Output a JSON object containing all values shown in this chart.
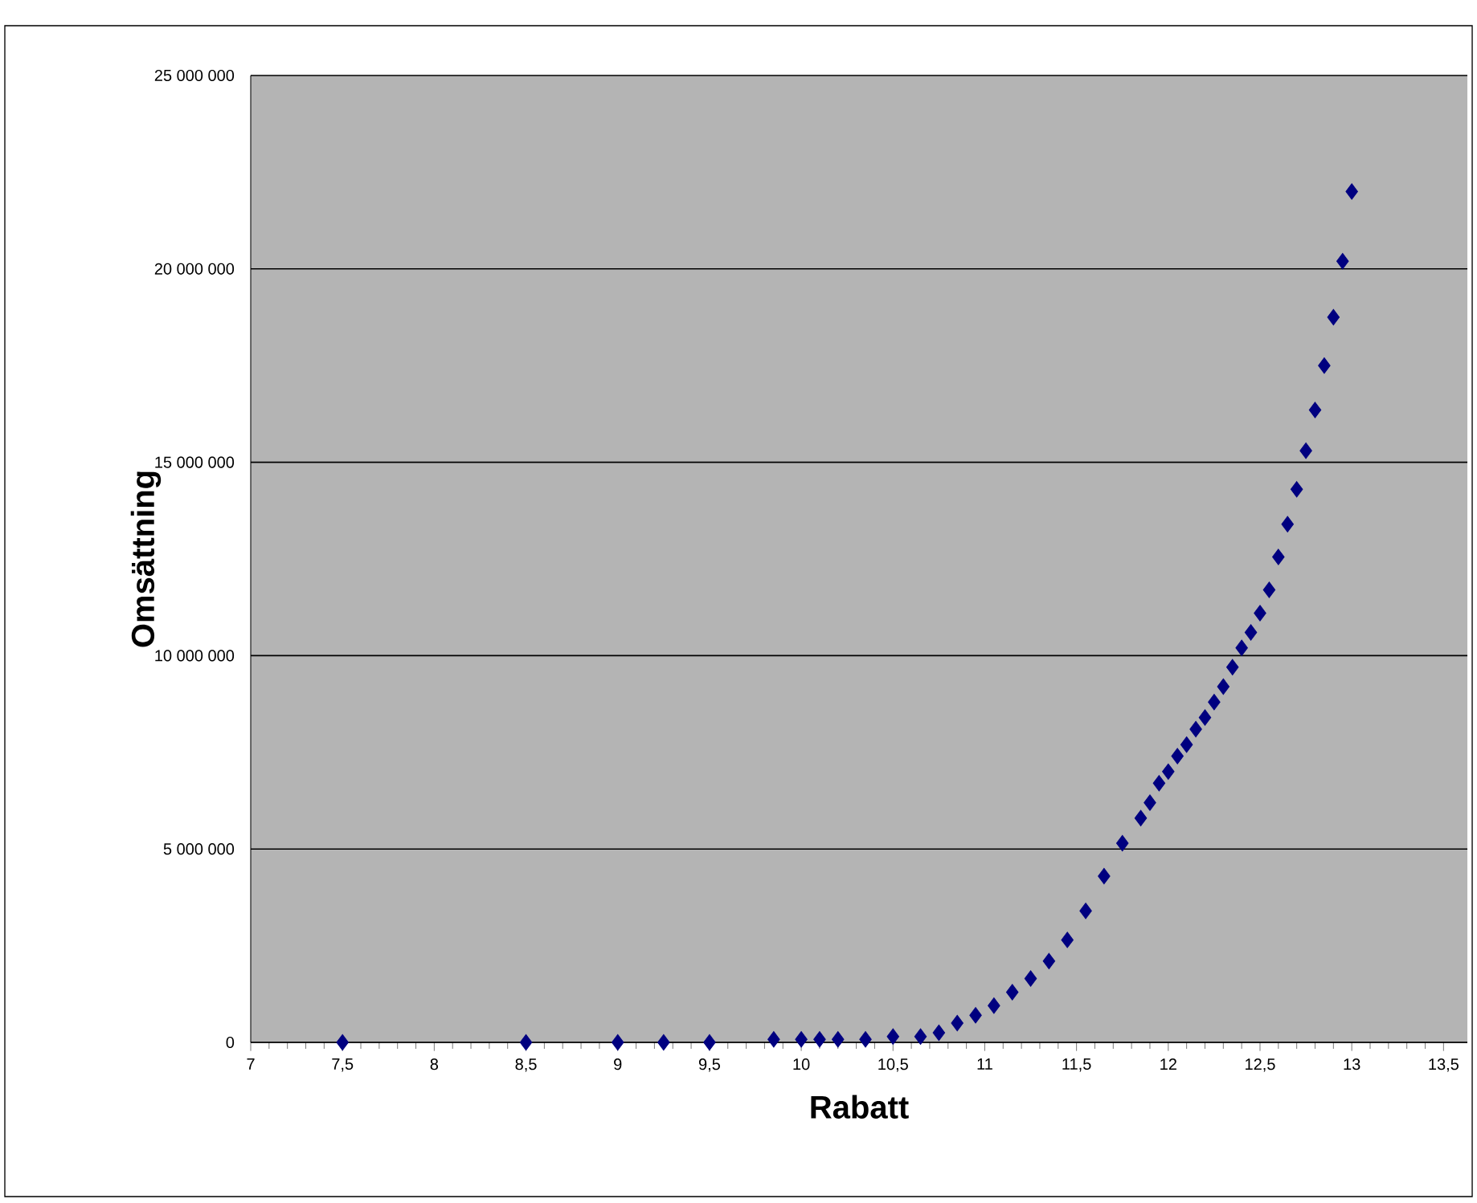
{
  "chart_data": {
    "type": "scatter",
    "xlabel": "Rabatt",
    "ylabel": "Omsättning",
    "x": [
      7.5,
      8.5,
      9,
      9.25,
      9.5,
      9.85,
      10,
      10.1,
      10.2,
      10.35,
      10.5,
      10.65,
      10.75,
      10.85,
      10.95,
      11.05,
      11.15,
      11.25,
      11.35,
      11.45,
      11.55,
      11.65,
      11.75,
      11.85,
      11.9,
      11.95,
      12,
      12.05,
      12.1,
      12.15,
      12.2,
      12.25,
      12.3,
      12.35,
      12.4,
      12.45,
      12.5,
      12.55,
      12.6,
      12.65,
      12.7,
      12.75,
      12.8,
      12.85,
      12.9,
      12.95,
      13
    ],
    "series": [
      {
        "color": "#000080",
        "values": [
          0,
          0,
          0,
          0,
          0,
          80000,
          80000,
          80000,
          80000,
          80000,
          150000,
          150000,
          250000,
          500000,
          700000,
          950000,
          1300000,
          1650000,
          2100000,
          2650000,
          3400000,
          4300000,
          5150000,
          5800000,
          6200000,
          6700000,
          7000000,
          7400000,
          7700000,
          8100000,
          8400000,
          8800000,
          9200000,
          9700000,
          10200000,
          10600000,
          11100000,
          11700000,
          12550000,
          13400000,
          14300000,
          15300000,
          16350000,
          17500000,
          18750000,
          20200000,
          22000000
        ]
      }
    ],
    "xlim": [
      7,
      13.63
    ],
    "xticks": [
      7,
      {
        "value": 7.5,
        "label": "7,5"
      },
      8,
      {
        "value": 8.5,
        "label": "8,5"
      },
      9,
      {
        "value": 9.5,
        "label": "9,5"
      },
      10,
      {
        "value": 10.5,
        "label": "10,5"
      },
      11,
      {
        "value": 11.5,
        "label": "11,5"
      },
      12,
      {
        "value": 12.5,
        "label": "12,5"
      },
      13,
      {
        "value": 13.5,
        "label": "13,5"
      }
    ],
    "ylim": [
      0,
      25000000
    ],
    "yticks": [
      0,
      {
        "value": 5000000,
        "label": "5 000 000"
      },
      {
        "value": 10000000,
        "label": "10 000 000"
      },
      {
        "value": 15000000,
        "label": "15 000 000"
      },
      {
        "value": 20000000,
        "label": "20 000 000"
      },
      {
        "value": 25000000,
        "label": "25 000 000"
      }
    ],
    "grid": "y",
    "marker": "diamond"
  }
}
